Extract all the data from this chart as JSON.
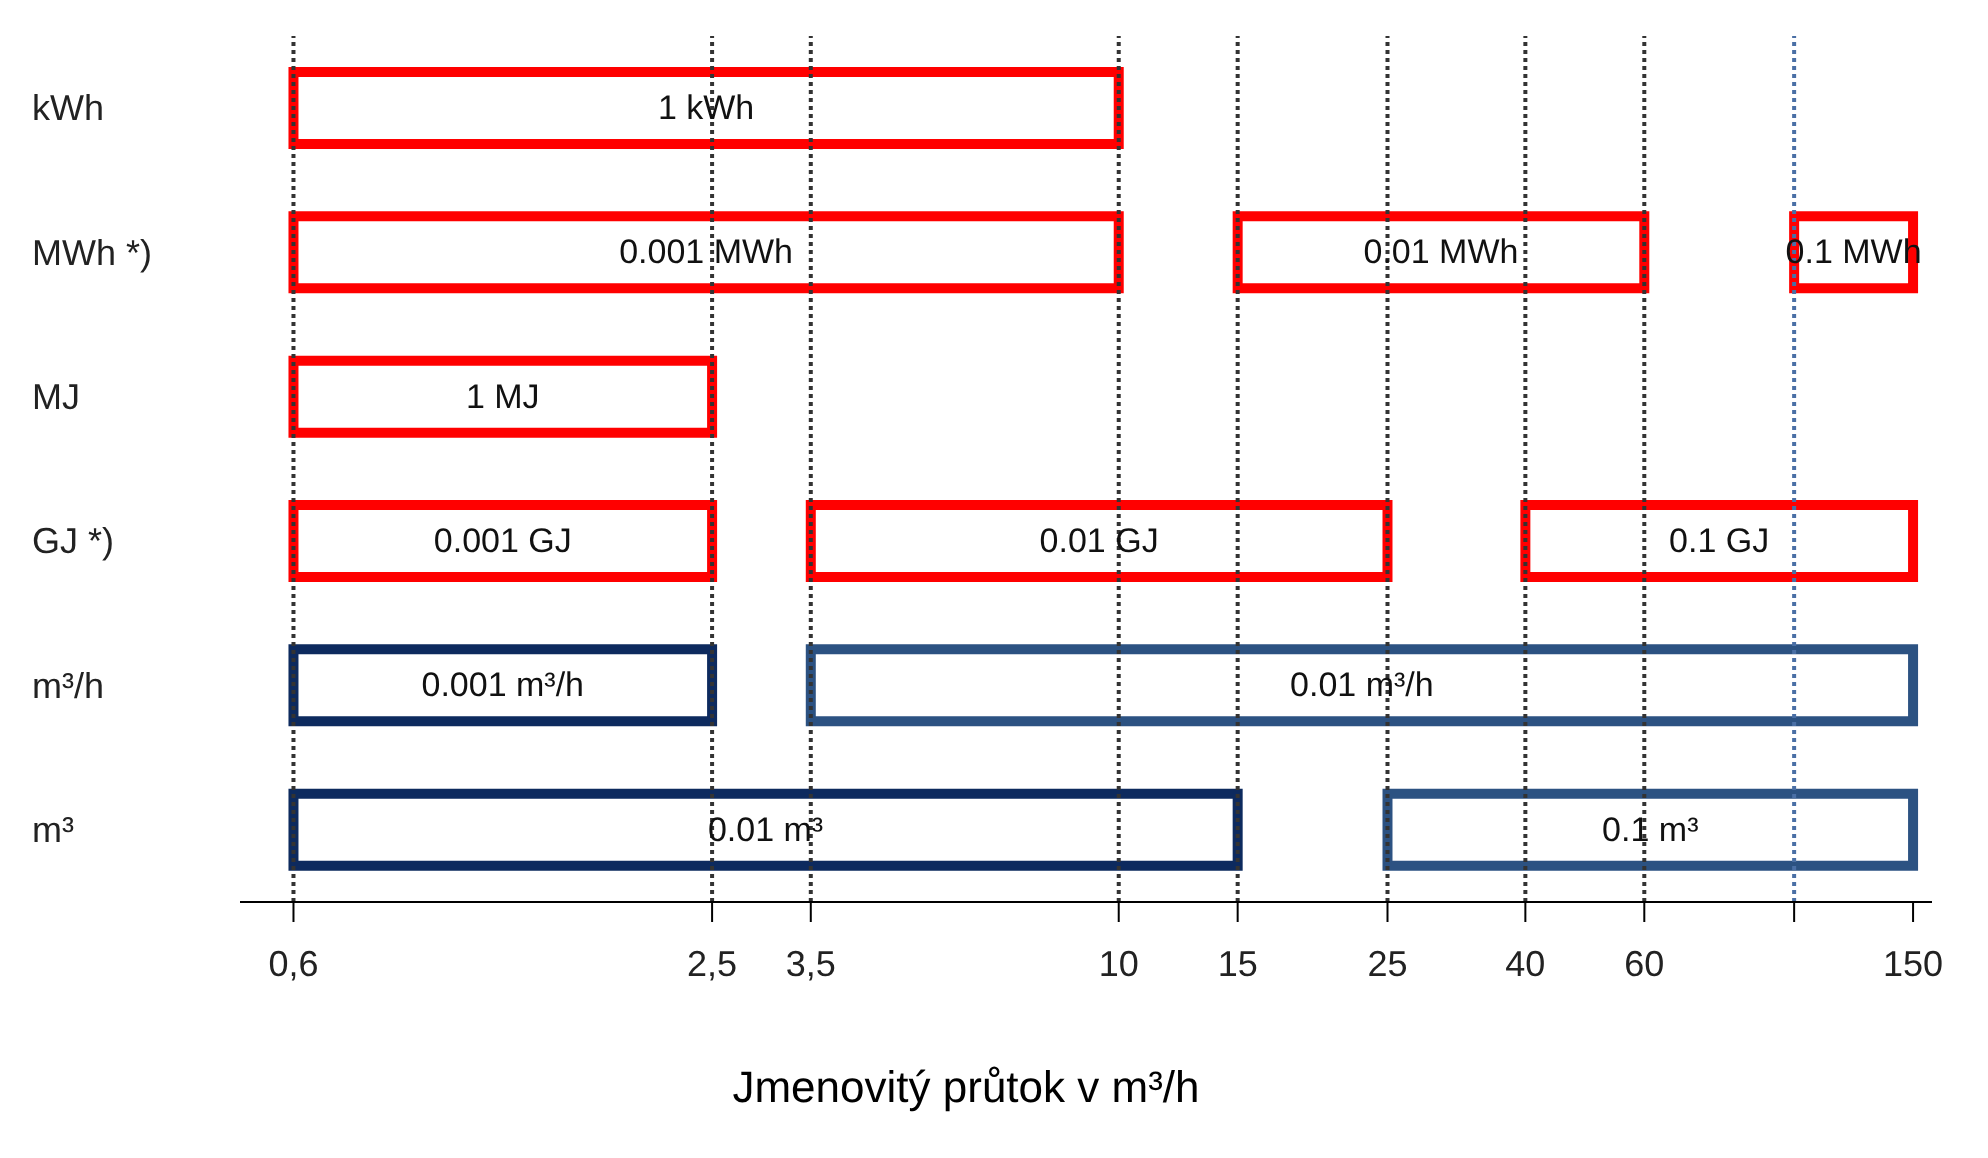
{
  "chart_data": {
    "type": "bar",
    "orientation": "horizontal",
    "xlabel": "Jmenovitý průtok v m³/h",
    "categories": [
      "kWh",
      "MWh *)",
      "MJ",
      "GJ *)",
      "m³/h",
      "m³"
    ],
    "log": "x",
    "xlim": [
      0.5,
      160
    ],
    "xticks": [
      {
        "value": 0.6,
        "label": "0,6"
      },
      {
        "value": 2.5,
        "label": "2,5"
      },
      {
        "value": 3.5,
        "label": "3,5"
      },
      10,
      15,
      25,
      40,
      60,
      {
        "value": 100,
        "label": null
      },
      150
    ],
    "series": [
      {
        "name": "1 kWh",
        "color": "#ff0000",
        "base": [
          0.6,
          null,
          null,
          null,
          null,
          null
        ],
        "values": [
          9.4,
          null,
          null,
          null,
          null,
          null
        ]
      },
      {
        "name": "0.001 MWh",
        "color": "#ff0000",
        "base": [
          null,
          0.6,
          null,
          null,
          null,
          null
        ],
        "values": [
          null,
          9.4,
          null,
          null,
          null,
          null
        ]
      },
      {
        "name": "0.01 MWh",
        "color": "#ff0000",
        "base": [
          null,
          15,
          null,
          null,
          null,
          null
        ],
        "values": [
          null,
          45,
          null,
          null,
          null,
          null
        ]
      },
      {
        "name": "0.1 MWh",
        "color": "#ff0000",
        "base": [
          null,
          100,
          null,
          null,
          null,
          null
        ],
        "values": [
          null,
          50,
          null,
          null,
          null,
          null
        ]
      },
      {
        "name": "1 MJ",
        "color": "#ff0000",
        "base": [
          null,
          null,
          0.6,
          null,
          null,
          null
        ],
        "values": [
          null,
          null,
          1.9,
          null,
          null,
          null
        ]
      },
      {
        "name": "0.001 GJ",
        "color": "#ff0000",
        "base": [
          null,
          null,
          null,
          0.6,
          null,
          null
        ],
        "values": [
          null,
          null,
          null,
          1.9,
          null,
          null
        ]
      },
      {
        "name": "0.01 GJ",
        "color": "#ff0000",
        "base": [
          null,
          null,
          null,
          3.5,
          null,
          null
        ],
        "values": [
          null,
          null,
          null,
          21.5,
          null,
          null
        ]
      },
      {
        "name": "0.1 GJ",
        "color": "#ff0000",
        "base": [
          null,
          null,
          null,
          40,
          null,
          null
        ],
        "values": [
          null,
          null,
          null,
          110,
          null,
          null
        ]
      },
      {
        "name": "0.001 m³/h",
        "color": "#0d2a5e",
        "base": [
          null,
          null,
          null,
          null,
          0.6,
          null
        ],
        "values": [
          null,
          null,
          null,
          null,
          1.9,
          null
        ]
      },
      {
        "name": "0.01 m³/h",
        "color": "#2c5282",
        "base": [
          null,
          null,
          null,
          null,
          3.5,
          null
        ],
        "values": [
          null,
          null,
          null,
          null,
          146.5,
          null
        ]
      },
      {
        "name": "0.01 m³",
        "color": "#0d2a5e",
        "base": [
          null,
          null,
          null,
          null,
          null,
          0.6
        ],
        "values": [
          null,
          null,
          null,
          null,
          null,
          14.4
        ]
      },
      {
        "name": "0.1 m³",
        "color": "#2c5282",
        "base": [
          null,
          null,
          null,
          null,
          null,
          25
        ],
        "values": [
          null,
          null,
          null,
          null,
          null,
          125
        ]
      }
    ],
    "ref_lines": [
      {
        "axis": "x",
        "value": 0.6,
        "color": "#333333",
        "line_style": "dotted"
      },
      {
        "axis": "x",
        "value": 2.5,
        "color": "#333333",
        "line_style": "dotted"
      },
      {
        "axis": "x",
        "value": 3.5,
        "color": "#333333",
        "line_style": "dotted"
      },
      {
        "axis": "x",
        "value": 10,
        "color": "#333333",
        "line_style": "dotted"
      },
      {
        "axis": "x",
        "value": 15,
        "color": "#333333",
        "line_style": "dotted"
      },
      {
        "axis": "x",
        "value": 25,
        "color": "#333333",
        "line_style": "dotted"
      },
      {
        "axis": "x",
        "value": 40,
        "color": "#333333",
        "line_style": "dotted"
      },
      {
        "axis": "x",
        "value": 60,
        "color": "#333333",
        "line_style": "dotted"
      },
      {
        "axis": "x",
        "value": 100,
        "color": "#4a6fa5",
        "line_style": "dotted"
      }
    ]
  }
}
